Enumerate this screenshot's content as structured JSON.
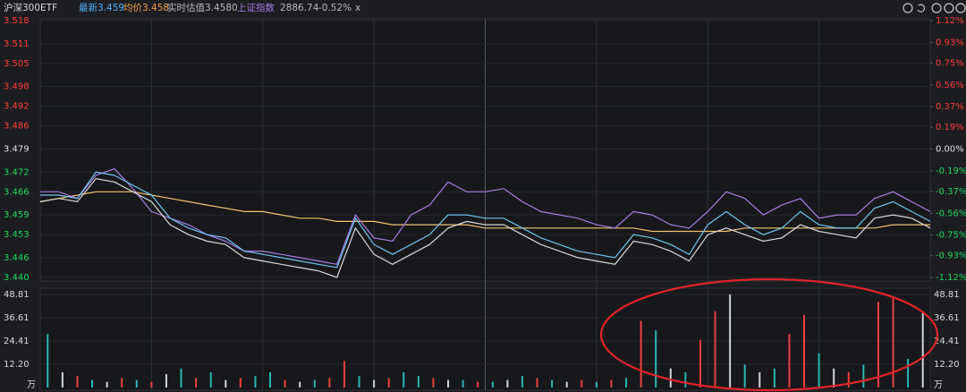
{
  "header": {
    "title": "沪深300ETF",
    "latest": "最新3.459",
    "avg": "均价3.458",
    "estimate": "实时估值3.4580",
    "index_name": "上证指数",
    "index_value": "2886.74",
    "index_change": "-0.52%",
    "close": "x"
  },
  "chart_data": [
    {
      "type": "line",
      "x": [
        0,
        5,
        10,
        15,
        20,
        25,
        30,
        35,
        40,
        45,
        50,
        55,
        60,
        65,
        70,
        75,
        80,
        85,
        90,
        95,
        100,
        105,
        110,
        115,
        120,
        125,
        130,
        135,
        140,
        145,
        150,
        155,
        160,
        165,
        170,
        175,
        180,
        185,
        190,
        195,
        200,
        205,
        210,
        215,
        220,
        225,
        230,
        235,
        240
      ],
      "xlim": [
        0,
        240
      ],
      "ylim": [
        3.44,
        3.518
      ],
      "yticks": [
        3.518,
        3.511,
        3.505,
        3.498,
        3.492,
        3.486,
        3.479,
        3.472,
        3.466,
        3.459,
        3.453,
        3.446,
        {
          "value": 3.44,
          "label": "3.440"
        }
      ],
      "y2lim": [
        -1.12,
        1.12
      ],
      "y2ticks": [
        {
          "value": 1.12,
          "label": "1.12%"
        },
        {
          "value": 0.93,
          "label": "0.93%"
        },
        {
          "value": 0.75,
          "label": "0.75%"
        },
        {
          "value": 0.56,
          "label": "0.56%"
        },
        {
          "value": 0.37,
          "label": "0.37%"
        },
        {
          "value": 0.19,
          "label": "0.19%"
        },
        {
          "value": 0,
          "label": "0.00%"
        },
        {
          "value": -0.19,
          "label": "-0.19%"
        },
        {
          "value": -0.37,
          "label": "-0.37%"
        },
        {
          "value": -0.56,
          "label": "-0.56%"
        },
        {
          "value": -0.75,
          "label": "-0.75%"
        },
        {
          "value": -0.93,
          "label": "-0.93%"
        },
        {
          "value": -1.12,
          "label": "-1.12%"
        }
      ],
      "grid": true,
      "series": [
        {
          "color": "#f2c46d",
          "values": [
            3.463,
            3.464,
            3.465,
            3.466,
            3.466,
            3.466,
            3.465,
            3.464,
            3.463,
            3.462,
            3.461,
            3.46,
            3.46,
            3.459,
            3.458,
            3.458,
            3.457,
            3.457,
            3.457,
            3.456,
            3.456,
            3.456,
            3.456,
            3.456,
            3.455,
            3.455,
            3.455,
            3.455,
            3.455,
            3.455,
            3.455,
            3.455,
            3.455,
            3.454,
            3.454,
            3.454,
            3.454,
            3.454,
            3.455,
            3.455,
            3.455,
            3.455,
            3.455,
            3.455,
            3.455,
            3.455,
            3.456,
            3.456,
            3.456
          ]
        },
        {
          "color": "#a77de0",
          "values": [
            3.466,
            3.466,
            3.464,
            3.471,
            3.473,
            3.467,
            3.46,
            3.458,
            3.456,
            3.453,
            3.451,
            3.448,
            3.448,
            3.447,
            3.446,
            3.445,
            3.444,
            3.459,
            3.452,
            3.451,
            3.459,
            3.462,
            3.469,
            3.466,
            3.466,
            3.467,
            3.463,
            3.46,
            3.459,
            3.458,
            3.456,
            3.455,
            3.46,
            3.459,
            3.456,
            3.455,
            3.46,
            3.466,
            3.464,
            3.459,
            3.462,
            3.464,
            3.458,
            3.459,
            3.459,
            3.464,
            3.466,
            3.463,
            3.46
          ]
        },
        {
          "color": "#6cc6f0",
          "values": [
            3.465,
            3.465,
            3.464,
            3.472,
            3.471,
            3.468,
            3.465,
            3.458,
            3.455,
            3.453,
            3.452,
            3.448,
            3.447,
            3.446,
            3.445,
            3.444,
            3.443,
            3.458,
            3.45,
            3.447,
            3.45,
            3.453,
            3.459,
            3.459,
            3.458,
            3.458,
            3.455,
            3.452,
            3.45,
            3.448,
            3.447,
            3.446,
            3.453,
            3.452,
            3.45,
            3.447,
            3.456,
            3.46,
            3.456,
            3.453,
            3.455,
            3.46,
            3.456,
            3.455,
            3.455,
            3.461,
            3.463,
            3.46,
            3.457
          ]
        },
        {
          "color": "#d8d8d8",
          "values": [
            3.463,
            3.464,
            3.463,
            3.47,
            3.469,
            3.466,
            3.463,
            3.456,
            3.453,
            3.451,
            3.45,
            3.446,
            3.445,
            3.444,
            3.443,
            3.442,
            3.44,
            3.455,
            3.447,
            3.444,
            3.447,
            3.45,
            3.455,
            3.457,
            3.456,
            3.456,
            3.453,
            3.45,
            3.448,
            3.446,
            3.445,
            3.444,
            3.451,
            3.45,
            3.448,
            3.445,
            3.453,
            3.455,
            3.453,
            3.451,
            3.452,
            3.456,
            3.454,
            3.453,
            3.452,
            3.458,
            3.459,
            3.458,
            3.455
          ]
        }
      ]
    },
    {
      "type": "bar",
      "values": [
        28,
        8,
        6,
        4,
        3,
        5,
        4,
        3,
        7,
        10,
        5,
        8,
        4,
        5,
        6,
        8,
        4,
        3,
        4,
        5,
        14,
        6,
        4,
        5,
        8,
        6,
        5,
        4,
        4,
        3,
        3,
        4,
        6,
        5,
        4,
        3,
        4,
        3,
        4,
        5,
        35,
        30,
        10,
        8,
        25,
        40,
        48.81,
        12,
        8,
        10,
        28,
        38,
        18,
        10,
        8,
        12,
        45,
        48,
        15,
        40
      ],
      "bar_colors": [
        "#2ab5b0",
        "#cfd2d6",
        "#e8403f",
        "#2ab5b0",
        "#cfd2d6",
        "#e8403f",
        "#2ab5b0",
        "#e8403f",
        "#cfd2d6",
        "#2ab5b0",
        "#e8403f",
        "#2ab5b0",
        "#cfd2d6",
        "#e8403f",
        "#2ab5b0",
        "#2ab5b0",
        "#e8403f",
        "#cfd2d6",
        "#2ab5b0",
        "#e8403f",
        "#e8403f",
        "#2ab5b0",
        "#cfd2d6",
        "#e8403f",
        "#2ab5b0",
        "#2ab5b0",
        "#e8403f",
        "#cfd2d6",
        "#2ab5b0",
        "#e8403f",
        "#2ab5b0",
        "#cfd2d6",
        "#2ab5b0",
        "#e8403f",
        "#2ab5b0",
        "#cfd2d6",
        "#e8403f",
        "#2ab5b0",
        "#e8403f",
        "#2ab5b0",
        "#e8403f",
        "#2ab5b0",
        "#cfd2d6",
        "#2ab5b0",
        "#e8403f",
        "#e8403f",
        "#cfd2d6",
        "#2ab5b0",
        "#cfd2d6",
        "#2ab5b0",
        "#e8403f",
        "#e8403f",
        "#2ab5b0",
        "#cfd2d6",
        "#e8403f",
        "#2ab5b0",
        "#e8403f",
        "#e8403f",
        "#2ab5b0",
        "#cfd2d6"
      ],
      "ylim": [
        0,
        50
      ],
      "yticks": [
        {
          "value": 12.2,
          "label": "12.20"
        },
        24.41,
        36.61,
        48.81
      ],
      "y_unit": "万"
    }
  ]
}
